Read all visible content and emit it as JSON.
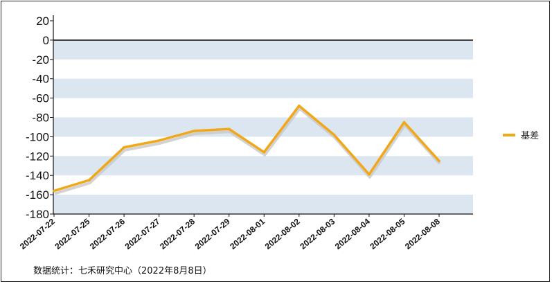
{
  "chart_data": {
    "type": "line",
    "title": "",
    "xlabel": "",
    "ylabel": "",
    "ylim": [
      -180,
      20
    ],
    "y_ticks": [
      20,
      0,
      -20,
      -40,
      -60,
      -80,
      -100,
      -120,
      -140,
      -160,
      -180
    ],
    "categories": [
      "2022-07-22",
      "2022-07-25",
      "2022-07-26",
      "2022-07-27",
      "2022-07-28",
      "2022-07-29",
      "2022-08-01",
      "2022-08-02",
      "2022-08-03",
      "2022-08-04",
      "2022-08-05",
      "2022-08-08"
    ],
    "series": [
      {
        "name": "基差",
        "values": [
          -156,
          -145,
          -111,
          -104,
          -94,
          -92,
          -116,
          -68,
          -98,
          -139,
          -85,
          -125
        ],
        "color": "#f0a818"
      }
    ],
    "legend": "right",
    "grid": "alternating-bands",
    "band_color": "#dbe6f1"
  },
  "source_note": "数据统计：七禾研究中心（2022年8月8日）"
}
